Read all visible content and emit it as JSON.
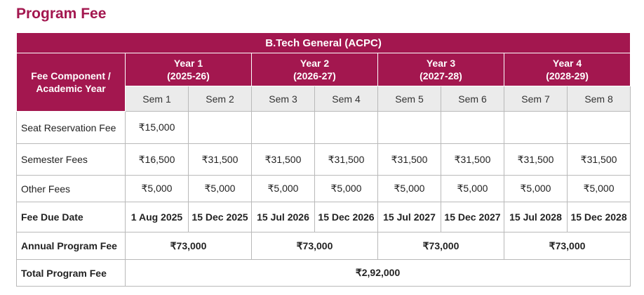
{
  "page_title": "Program Fee",
  "table": {
    "title": "B.Tech General (ACPC)",
    "component_header": [
      "Fee Component /",
      "Academic Year"
    ],
    "years": [
      {
        "label": "Year 1",
        "period": "(2025-26)"
      },
      {
        "label": "Year 2",
        "period": "(2026-27)"
      },
      {
        "label": "Year 3",
        "period": "(2027-28)"
      },
      {
        "label": "Year 4",
        "period": "(2028-29)"
      }
    ],
    "semesters": [
      "Sem 1",
      "Sem 2",
      "Sem 3",
      "Sem 4",
      "Sem 5",
      "Sem 6",
      "Sem 7",
      "Sem 8"
    ],
    "rows": {
      "seat_reservation": {
        "label": "Seat Reservation Fee",
        "values": [
          "₹15,000",
          "",
          "",
          "",
          "",
          "",
          "",
          ""
        ]
      },
      "semester_fees": {
        "label": "Semester Fees",
        "values": [
          "₹16,500",
          "₹31,500",
          "₹31,500",
          "₹31,500",
          "₹31,500",
          "₹31,500",
          "₹31,500",
          "₹31,500"
        ]
      },
      "other_fees": {
        "label": "Other Fees",
        "values": [
          "₹5,000",
          "₹5,000",
          "₹5,000",
          "₹5,000",
          "₹5,000",
          "₹5,000",
          "₹5,000",
          "₹5,000"
        ]
      },
      "fee_due_date": {
        "label": "Fee Due Date",
        "values": [
          "1 Aug 2025",
          "15 Dec 2025",
          "15 Jul 2026",
          "15 Dec 2026",
          "15 Jul 2027",
          "15 Dec 2027",
          "15 Jul 2028",
          "15 Dec 2028"
        ]
      },
      "annual_program_fee": {
        "label": "Annual Program Fee",
        "values": [
          "₹73,000",
          "₹73,000",
          "₹73,000",
          "₹73,000"
        ]
      },
      "total_program_fee": {
        "label": "Total Program Fee",
        "value": "₹2,92,000"
      }
    }
  }
}
